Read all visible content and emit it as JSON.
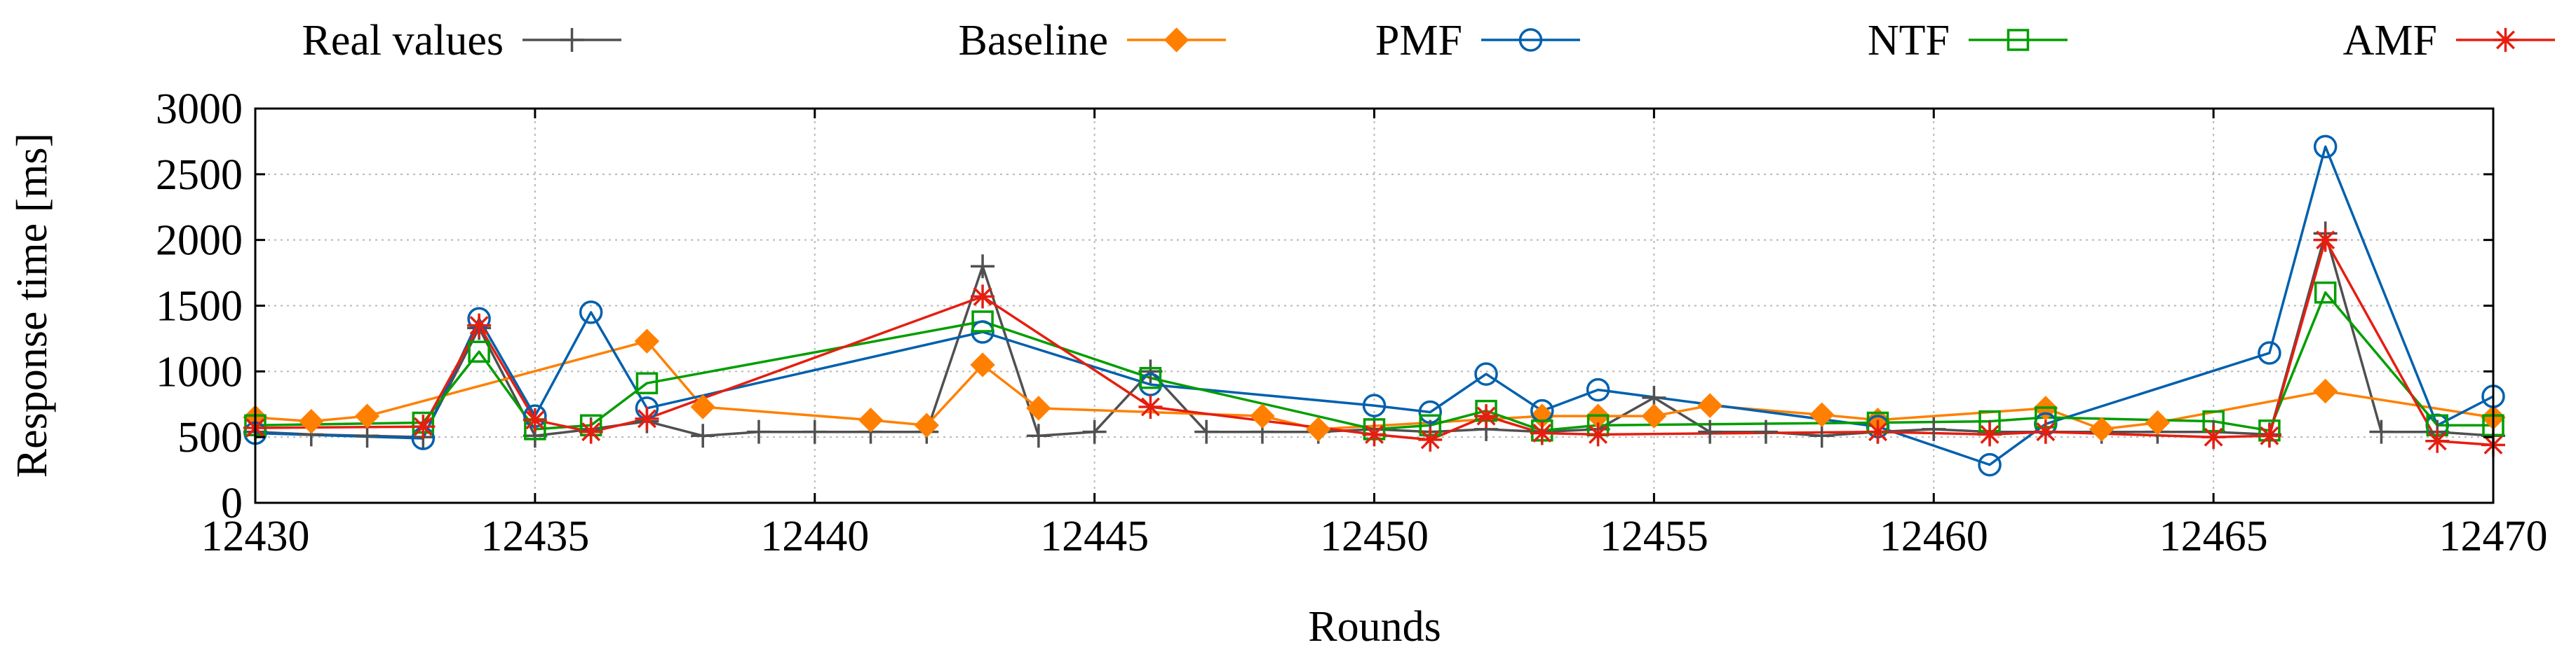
{
  "chart_data": {
    "type": "line",
    "title": "",
    "xlabel": "Rounds",
    "ylabel": "Response time [ms]",
    "xlim": [
      12430,
      12470
    ],
    "ylim": [
      0,
      3000
    ],
    "x_ticks": [
      12430,
      12435,
      12440,
      12445,
      12450,
      12455,
      12460,
      12465,
      12470
    ],
    "y_ticks": [
      0,
      500,
      1000,
      1500,
      2000,
      2500,
      3000
    ],
    "grid": true,
    "legend_position": "top",
    "series": [
      {
        "name": "Real values",
        "color": "#505050",
        "marker": "plus",
        "points": [
          [
            12430,
            540
          ],
          [
            12431,
            520
          ],
          [
            12432,
            510
          ],
          [
            12433,
            500
          ],
          [
            12434,
            1330
          ],
          [
            12435,
            510
          ],
          [
            12436,
            560
          ],
          [
            12437,
            620
          ],
          [
            12438,
            510
          ],
          [
            12439,
            540
          ],
          [
            12440,
            540
          ],
          [
            12441,
            540
          ],
          [
            12442,
            540
          ],
          [
            12443,
            1800
          ],
          [
            12444,
            510
          ],
          [
            12445,
            540
          ],
          [
            12446,
            1000
          ],
          [
            12447,
            540
          ],
          [
            12448,
            540
          ],
          [
            12449,
            540
          ],
          [
            12450,
            560
          ],
          [
            12451,
            540
          ],
          [
            12452,
            560
          ],
          [
            12453,
            540
          ],
          [
            12454,
            560
          ],
          [
            12455,
            800
          ],
          [
            12456,
            540
          ],
          [
            12457,
            540
          ],
          [
            12458,
            510
          ],
          [
            12459,
            540
          ],
          [
            12460,
            560
          ],
          [
            12461,
            540
          ],
          [
            12462,
            540
          ],
          [
            12463,
            540
          ],
          [
            12464,
            540
          ],
          [
            12465,
            540
          ],
          [
            12466,
            520
          ],
          [
            12467,
            2050
          ],
          [
            12468,
            540
          ],
          [
            12469,
            540
          ],
          [
            12470,
            510
          ]
        ]
      },
      {
        "name": "Baseline",
        "color": "#ff8000",
        "marker": "diamond",
        "points": [
          [
            12430,
            650
          ],
          [
            12431,
            620
          ],
          [
            12432,
            660
          ],
          [
            12437,
            1230
          ],
          [
            12438,
            730
          ],
          [
            12441,
            630
          ],
          [
            12442,
            590
          ],
          [
            12443,
            1050
          ],
          [
            12444,
            720
          ],
          [
            12448,
            660
          ],
          [
            12449,
            560
          ],
          [
            12453,
            660
          ],
          [
            12454,
            660
          ],
          [
            12455,
            660
          ],
          [
            12456,
            740
          ],
          [
            12458,
            670
          ],
          [
            12459,
            630
          ],
          [
            12462,
            720
          ],
          [
            12463,
            560
          ],
          [
            12464,
            610
          ],
          [
            12467,
            850
          ],
          [
            12470,
            650
          ]
        ]
      },
      {
        "name": "PMF",
        "color": "#0060ad",
        "marker": "circle",
        "points": [
          [
            12430,
            530
          ],
          [
            12433,
            490
          ],
          [
            12434,
            1400
          ],
          [
            12435,
            660
          ],
          [
            12436,
            1450
          ],
          [
            12437,
            720
          ],
          [
            12443,
            1300
          ],
          [
            12446,
            900
          ],
          [
            12450,
            740
          ],
          [
            12451,
            690
          ],
          [
            12452,
            980
          ],
          [
            12453,
            700
          ],
          [
            12454,
            860
          ],
          [
            12459,
            580
          ],
          [
            12461,
            290
          ],
          [
            12462,
            600
          ],
          [
            12466,
            1140
          ],
          [
            12467,
            2710
          ],
          [
            12469,
            590
          ],
          [
            12470,
            810
          ]
        ]
      },
      {
        "name": "NTF",
        "color": "#009e00",
        "marker": "square",
        "points": [
          [
            12430,
            590
          ],
          [
            12433,
            610
          ],
          [
            12434,
            1150
          ],
          [
            12435,
            560
          ],
          [
            12436,
            590
          ],
          [
            12437,
            910
          ],
          [
            12443,
            1380
          ],
          [
            12446,
            950
          ],
          [
            12450,
            560
          ],
          [
            12451,
            590
          ],
          [
            12452,
            700
          ],
          [
            12453,
            550
          ],
          [
            12454,
            590
          ],
          [
            12459,
            610
          ],
          [
            12461,
            620
          ],
          [
            12462,
            650
          ],
          [
            12465,
            620
          ],
          [
            12466,
            550
          ],
          [
            12467,
            1600
          ],
          [
            12469,
            590
          ],
          [
            12470,
            590
          ]
        ]
      },
      {
        "name": "AMF",
        "color": "#e51e10",
        "marker": "star",
        "points": [
          [
            12430,
            570
          ],
          [
            12433,
            580
          ],
          [
            12434,
            1350
          ],
          [
            12435,
            630
          ],
          [
            12436,
            540
          ],
          [
            12437,
            640
          ],
          [
            12443,
            1570
          ],
          [
            12446,
            730
          ],
          [
            12450,
            520
          ],
          [
            12451,
            480
          ],
          [
            12452,
            660
          ],
          [
            12453,
            530
          ],
          [
            12454,
            520
          ],
          [
            12459,
            540
          ],
          [
            12461,
            520
          ],
          [
            12462,
            540
          ],
          [
            12465,
            500
          ],
          [
            12466,
            510
          ],
          [
            12467,
            2000
          ],
          [
            12469,
            470
          ],
          [
            12470,
            440
          ]
        ]
      }
    ]
  }
}
